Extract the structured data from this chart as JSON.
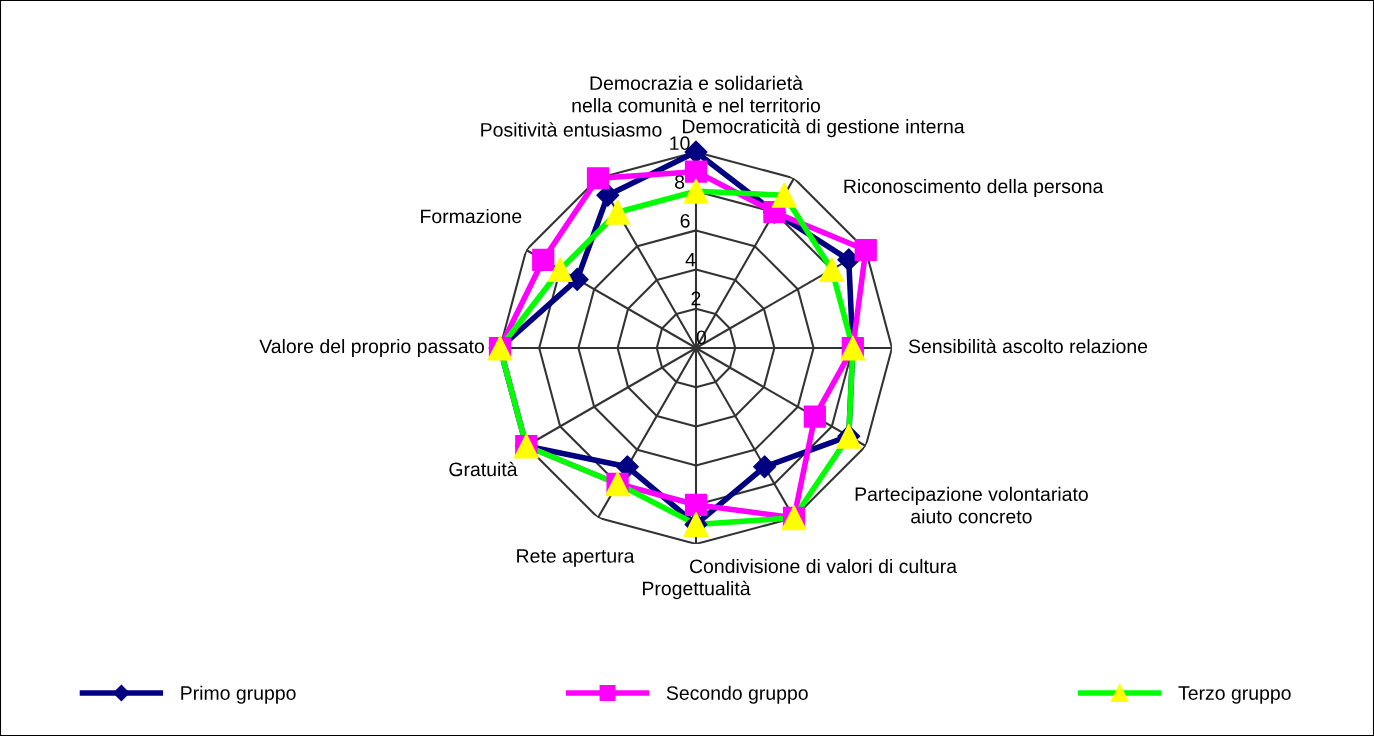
{
  "chart_data": {
    "type": "radar",
    "categories": [
      "Democrazia e solidarietà\nnella comunità e nel territorio",
      "Democraticità di gestione interna",
      "Riconoscimento della persona",
      "Sensibilità ascolto relazione",
      "Partecipazione volontariato\naiuto concreto",
      "Condivisione di valori di cultura",
      "Progettualità",
      "Rete apertura",
      "Gratuità",
      "Valore del proprio passato",
      "Formazione",
      "Positività entusiasmo"
    ],
    "series": [
      {
        "name": "Primo gruppo",
        "color": "#000080",
        "marker": "diamond",
        "values": [
          10,
          8,
          9,
          8,
          9,
          7,
          9,
          7,
          10,
          10,
          7,
          9
        ]
      },
      {
        "name": "Secondo gruppo",
        "color": "#ff00ff",
        "marker": "square",
        "values": [
          9,
          8,
          10,
          8,
          7,
          10,
          8,
          8,
          10,
          10,
          9,
          10
        ]
      },
      {
        "name": "Terzo gruppo",
        "color": "#00ff00",
        "marker": "triangle",
        "colors": [
          "#ffff00",
          "#ffff00",
          "#ffff00",
          "#ffff00",
          "#ffff00",
          "#ffff00",
          "#ffff00",
          "#ffff00",
          "#ffff00",
          "#ffff00",
          "#ffff00",
          "#ffff00"
        ],
        "values": [
          8,
          9,
          8,
          8,
          9,
          10,
          9,
          8,
          10,
          10,
          8,
          8
        ]
      }
    ],
    "ylim": [
      0,
      10
    ],
    "yticks": [
      0,
      2,
      4,
      6,
      8,
      10
    ],
    "grid": true,
    "legend": "bottom"
  }
}
